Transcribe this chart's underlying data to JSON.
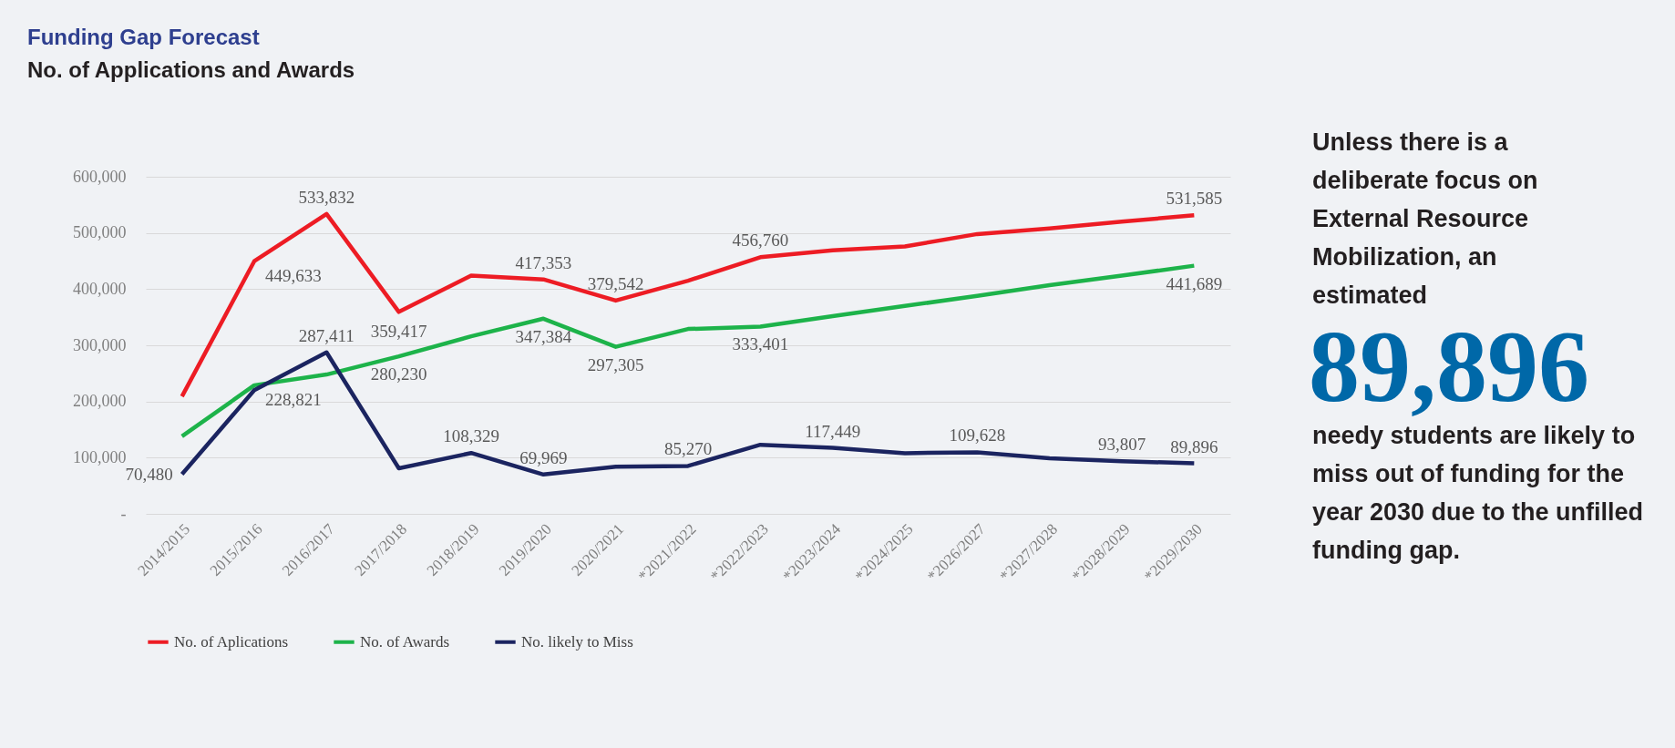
{
  "chart_data": {
    "type": "line",
    "title": "Funding Gap Forecast",
    "subtitle": "No. of Applications and Awards",
    "categories": [
      "2014/2015",
      "2015/2016",
      "2016/2017",
      "2017/2018",
      "2018/2019",
      "2019/2020",
      "2020/2021",
      "*2021/2022",
      "*2022/2023",
      "*2023/2024",
      "*2024/2025",
      "*2026/2027",
      "*2027/2028",
      "*2028/2029",
      "*2029/2030"
    ],
    "series": [
      {
        "name": "No. of Aplications",
        "color": "#ed1c24",
        "values": [
          209000,
          449633,
          533832,
          359417,
          424000,
          417353,
          379542,
          415000,
          456760,
          469000,
          476000,
          498000,
          508000,
          520000,
          531585
        ],
        "value_labels": [
          null,
          "449,633",
          "533,832",
          "359,417",
          null,
          "417,353",
          "379,542",
          null,
          "456,760",
          null,
          null,
          null,
          null,
          null,
          "531,585"
        ]
      },
      {
        "name": "No. of Awards",
        "color": "#1db34a",
        "values": [
          138000,
          228821,
          248000,
          280230,
          316000,
          347384,
          297305,
          329000,
          333401,
          352000,
          370000,
          388000,
          407000,
          424000,
          441689
        ],
        "value_labels": [
          null,
          "228,821",
          null,
          "280,230",
          null,
          "347,384",
          "297,305",
          null,
          "333,401",
          null,
          null,
          null,
          null,
          null,
          "441,689"
        ]
      },
      {
        "name": "No. likely to Miss",
        "color": "#1b2460",
        "values": [
          70480,
          220000,
          287411,
          81000,
          108329,
          69969,
          84000,
          85270,
          123000,
          117449,
          108000,
          109628,
          99000,
          93807,
          89896
        ],
        "value_labels": [
          "70,480",
          null,
          "287,411",
          null,
          "108,329",
          "69,969",
          null,
          "85,270",
          null,
          "117,449",
          null,
          "109,628",
          null,
          "93,807",
          "89,896"
        ]
      }
    ],
    "ylim": [
      0,
      600000
    ],
    "yticks": [
      {
        "value": 0,
        "label": "-"
      },
      {
        "value": 100000,
        "label": "100,000"
      },
      {
        "value": 200000,
        "label": "200,000"
      },
      {
        "value": 300000,
        "label": "300,000"
      },
      {
        "value": 400000,
        "label": "400,000"
      },
      {
        "value": 500000,
        "label": "500,000"
      },
      {
        "value": 600000,
        "label": "600,000"
      }
    ],
    "grid": "y",
    "legend": "bottom",
    "marker": "none",
    "line_style": "solid",
    "annotations": [
      "Unless there is a deliberate focus on External Resource Mobilization, an estimated",
      "89,896",
      "needy students are likely to miss out of funding for the year 2030 due to the unfilled funding gap."
    ]
  }
}
